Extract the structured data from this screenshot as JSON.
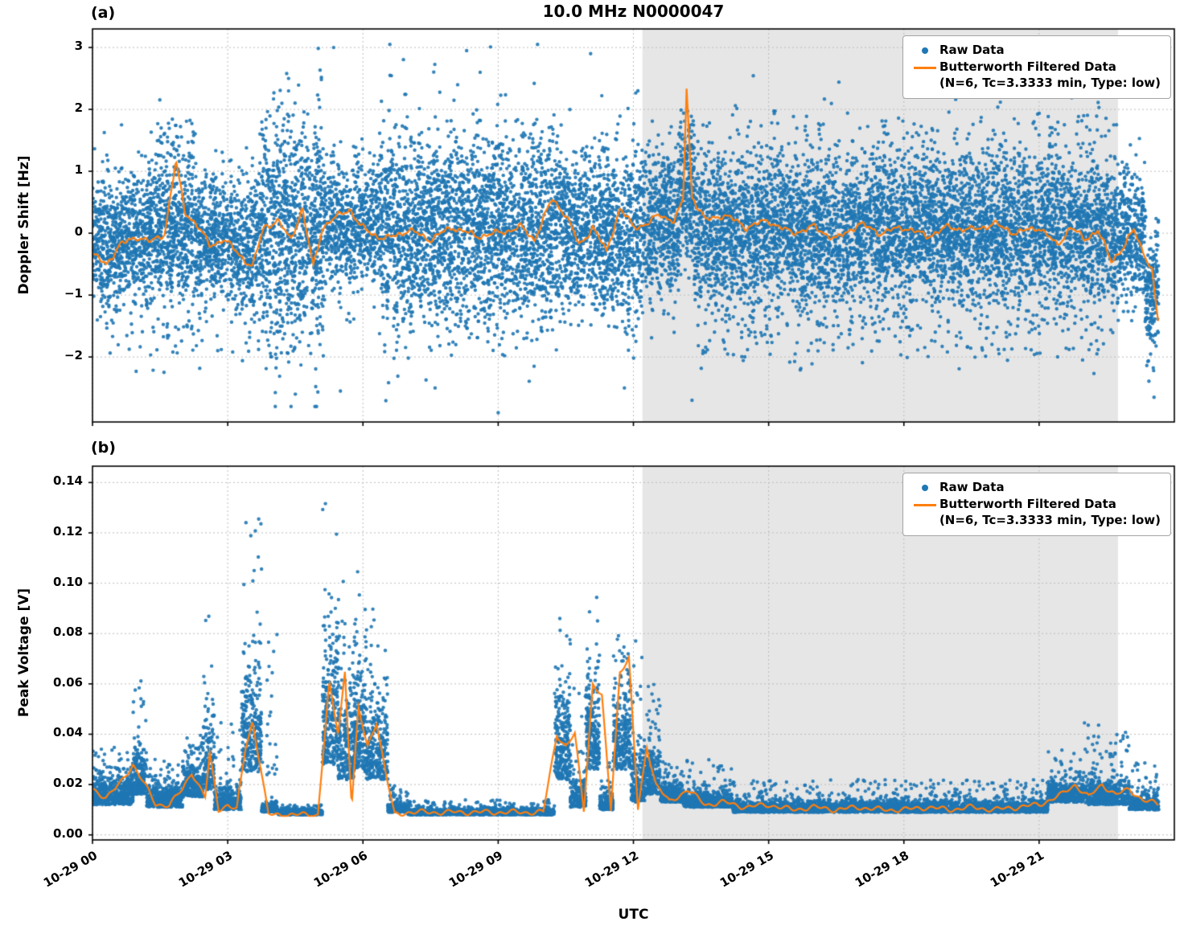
{
  "figure": {
    "title": "10.0 MHz N0000047",
    "panel_a_label": "(a)",
    "panel_b_label": "(b)",
    "xlabel": "UTC",
    "colors": {
      "raw": "#1f77b4",
      "filtered": "#ff7f0e",
      "shade": "#e6e6e6",
      "grid": "#bdbdbd",
      "spine": "#000000"
    },
    "legend": {
      "raw_label": "Raw Data",
      "filtered_label": "Butterworth Filtered Data",
      "filtered_sublabel": "(N=6, Tc=3.3333 min, Type: low)"
    }
  },
  "chart_data": [
    {
      "type": "scatter",
      "panel": "a",
      "title": "10.0 MHz N0000047",
      "ylabel": "Doppler Shift [Hz]",
      "ylim": [
        -3.05,
        3.3
      ],
      "yticks": [
        -2,
        -1,
        0,
        1,
        2,
        3
      ],
      "ytick_labels": [
        "−2",
        "−1",
        "0",
        "1",
        "2",
        "3"
      ],
      "xlim_hours": [
        0,
        24
      ],
      "xticks": [
        {
          "h": 0,
          "label": "10-29 00"
        },
        {
          "h": 3,
          "label": "10-29 03"
        },
        {
          "h": 6,
          "label": "10-29 06"
        },
        {
          "h": 9,
          "label": "10-29 09"
        },
        {
          "h": 12,
          "label": "10-29 12"
        },
        {
          "h": 15,
          "label": "10-29 15"
        },
        {
          "h": 18,
          "label": "10-29 18"
        },
        {
          "h": 21,
          "label": "10-29 21"
        }
      ],
      "shade_hours": [
        12.2,
        22.75
      ],
      "grid": true,
      "legend_position": "upper right",
      "segments_format": "[t0_hours, t1_hours, mean_Hz, sigma_Hz, n_points]",
      "raw_segments": [
        [
          0.0,
          0.45,
          -0.15,
          0.55,
          260
        ],
        [
          0.45,
          1.15,
          -0.1,
          0.5,
          420
        ],
        [
          1.15,
          2.35,
          0.0,
          0.55,
          750
        ],
        [
          2.35,
          3.1,
          -0.1,
          0.5,
          430
        ],
        [
          3.1,
          3.75,
          -0.2,
          0.55,
          370
        ],
        [
          3.75,
          5.15,
          0.05,
          0.95,
          950
        ],
        [
          5.15,
          6.35,
          0.1,
          0.5,
          680
        ],
        [
          6.35,
          7.3,
          0.05,
          0.85,
          620
        ],
        [
          7.3,
          8.05,
          0.0,
          0.8,
          500
        ],
        [
          8.05,
          9.2,
          0.05,
          0.8,
          760
        ],
        [
          9.2,
          10.35,
          0.0,
          0.75,
          720
        ],
        [
          10.35,
          11.0,
          0.1,
          0.6,
          420
        ],
        [
          11.0,
          12.2,
          0.0,
          0.7,
          760
        ],
        [
          12.2,
          13.0,
          0.1,
          0.6,
          520
        ],
        [
          13.0,
          13.35,
          0.7,
          0.6,
          240
        ],
        [
          13.35,
          22.4,
          0.05,
          0.62,
          5800
        ],
        [
          22.4,
          23.35,
          -0.05,
          0.55,
          580
        ],
        [
          23.35,
          23.65,
          -0.9,
          0.5,
          190
        ],
        [
          0.3,
          3.5,
          -1.6,
          0.3,
          60
        ],
        [
          1.4,
          2.3,
          1.5,
          0.3,
          55
        ],
        [
          13.4,
          22.4,
          -1.7,
          0.25,
          150
        ],
        [
          13.4,
          22.8,
          1.75,
          0.2,
          70
        ]
      ],
      "outliers": [
        [
          5.35,
          3.0
        ],
        [
          8.3,
          2.95
        ],
        [
          11.05,
          2.9
        ],
        [
          8.6,
          2.6
        ],
        [
          4.35,
          2.5
        ],
        [
          6.6,
          2.55
        ],
        [
          12.1,
          2.3
        ],
        [
          9.0,
          -2.9
        ],
        [
          11.8,
          -2.5
        ],
        [
          5.5,
          -2.55
        ],
        [
          23.55,
          -2.65
        ],
        [
          13.3,
          -2.7
        ],
        [
          4.5,
          -2.6
        ],
        [
          7.6,
          -2.5
        ]
      ],
      "filtered_keypoints": [
        [
          0,
          -0.35
        ],
        [
          0.3,
          -0.5
        ],
        [
          0.6,
          -0.2
        ],
        [
          1.0,
          -0.05
        ],
        [
          1.3,
          -0.15
        ],
        [
          1.6,
          0.0
        ],
        [
          1.85,
          1.15
        ],
        [
          2.05,
          0.35
        ],
        [
          2.3,
          0.15
        ],
        [
          2.6,
          -0.2
        ],
        [
          2.9,
          -0.1
        ],
        [
          3.2,
          -0.3
        ],
        [
          3.55,
          -0.55
        ],
        [
          3.8,
          0.1
        ],
        [
          4.1,
          0.2
        ],
        [
          4.4,
          -0.1
        ],
        [
          4.65,
          0.4
        ],
        [
          4.9,
          -0.55
        ],
        [
          5.1,
          0.1
        ],
        [
          5.4,
          0.25
        ],
        [
          5.7,
          0.4
        ],
        [
          5.95,
          0.1
        ],
        [
          6.2,
          0.0
        ],
        [
          6.5,
          -0.1
        ],
        [
          7.0,
          0.05
        ],
        [
          7.5,
          -0.1
        ],
        [
          8.0,
          0.1
        ],
        [
          8.5,
          -0.05
        ],
        [
          9.0,
          0.0
        ],
        [
          9.5,
          0.1
        ],
        [
          9.8,
          -0.1
        ],
        [
          10.2,
          0.55
        ],
        [
          10.5,
          0.3
        ],
        [
          10.8,
          -0.2
        ],
        [
          11.1,
          0.1
        ],
        [
          11.4,
          -0.3
        ],
        [
          11.7,
          0.4
        ],
        [
          12.0,
          0.1
        ],
        [
          12.3,
          0.15
        ],
        [
          12.6,
          0.3
        ],
        [
          12.9,
          0.2
        ],
        [
          13.1,
          0.5
        ],
        [
          13.18,
          2.35
        ],
        [
          13.3,
          0.6
        ],
        [
          13.6,
          0.2
        ],
        [
          14.0,
          0.3
        ],
        [
          14.5,
          0.1
        ],
        [
          15.0,
          0.2
        ],
        [
          15.5,
          0.0
        ],
        [
          16.0,
          0.1
        ],
        [
          16.5,
          -0.1
        ],
        [
          17.0,
          0.15
        ],
        [
          17.5,
          0.0
        ],
        [
          18.0,
          0.1
        ],
        [
          18.5,
          -0.05
        ],
        [
          19.0,
          0.1
        ],
        [
          19.5,
          0.05
        ],
        [
          20.0,
          0.15
        ],
        [
          20.5,
          0.0
        ],
        [
          21.0,
          0.1
        ],
        [
          21.4,
          -0.2
        ],
        [
          21.7,
          0.1
        ],
        [
          22.0,
          -0.1
        ],
        [
          22.3,
          0.05
        ],
        [
          22.6,
          -0.45
        ],
        [
          22.9,
          -0.2
        ],
        [
          23.1,
          0.05
        ],
        [
          23.35,
          -0.35
        ],
        [
          23.5,
          -0.6
        ],
        [
          23.65,
          -1.5
        ]
      ],
      "filtered_wiggle_Hz": 0.07,
      "series_names": [
        "Raw Data",
        "Butterworth Filtered Data (N=6, Tc=3.3333 min, Type: low)"
      ]
    },
    {
      "type": "scatter",
      "panel": "b",
      "ylabel": "Peak Voltage [V]",
      "xlabel": "UTC",
      "ylim": [
        -0.002,
        0.1465
      ],
      "yticks": [
        0.0,
        0.02,
        0.04,
        0.06,
        0.08,
        0.1,
        0.12,
        0.14
      ],
      "ytick_labels": [
        "0.00",
        "0.02",
        "0.04",
        "0.06",
        "0.08",
        "0.10",
        "0.12",
        "0.14"
      ],
      "xlim_hours": [
        0,
        24
      ],
      "xticks": [
        {
          "h": 0,
          "label": "10-29 00"
        },
        {
          "h": 3,
          "label": "10-29 03"
        },
        {
          "h": 6,
          "label": "10-29 06"
        },
        {
          "h": 9,
          "label": "10-29 09"
        },
        {
          "h": 12,
          "label": "10-29 12"
        },
        {
          "h": 15,
          "label": "10-29 15"
        },
        {
          "h": 18,
          "label": "10-29 18"
        },
        {
          "h": 21,
          "label": "10-29 21"
        }
      ],
      "shade_hours": [
        12.2,
        22.75
      ],
      "grid": true,
      "legend_position": "upper right",
      "segments_format": "[t0_hours, t1_hours, base_V, spread_V, burst_peak_V, n_points]",
      "raw_segments": [
        [
          0.0,
          0.9,
          0.012,
          0.012,
          0.035,
          520
        ],
        [
          0.9,
          1.2,
          0.016,
          0.018,
          0.062,
          220
        ],
        [
          1.2,
          2.0,
          0.011,
          0.009,
          0.03,
          460
        ],
        [
          2.0,
          2.45,
          0.015,
          0.013,
          0.04,
          260
        ],
        [
          2.45,
          2.7,
          0.018,
          0.025,
          0.088,
          160
        ],
        [
          2.7,
          3.3,
          0.01,
          0.008,
          0.045,
          310
        ],
        [
          3.3,
          3.75,
          0.025,
          0.04,
          0.13,
          300
        ],
        [
          3.75,
          4.1,
          0.009,
          0.004,
          0.082,
          200
        ],
        [
          4.1,
          5.1,
          0.008,
          0.002,
          0.012,
          560
        ],
        [
          5.1,
          5.45,
          0.028,
          0.05,
          0.143,
          260
        ],
        [
          5.45,
          5.8,
          0.022,
          0.035,
          0.107,
          230
        ],
        [
          5.8,
          6.05,
          0.026,
          0.04,
          0.108,
          190
        ],
        [
          6.05,
          6.55,
          0.022,
          0.03,
          0.09,
          310
        ],
        [
          6.55,
          7.0,
          0.009,
          0.003,
          0.02,
          260
        ],
        [
          7.0,
          10.25,
          0.008,
          0.002,
          0.014,
          1750
        ],
        [
          10.25,
          10.6,
          0.022,
          0.035,
          0.088,
          260
        ],
        [
          10.6,
          10.95,
          0.011,
          0.01,
          0.06,
          210
        ],
        [
          10.95,
          11.25,
          0.026,
          0.04,
          0.105,
          230
        ],
        [
          11.25,
          11.55,
          0.01,
          0.006,
          0.03,
          190
        ],
        [
          11.55,
          11.95,
          0.026,
          0.035,
          0.08,
          260
        ],
        [
          11.95,
          12.25,
          0.013,
          0.022,
          0.079,
          190
        ],
        [
          12.25,
          12.6,
          0.016,
          0.02,
          0.07,
          210
        ],
        [
          12.6,
          13.1,
          0.013,
          0.008,
          0.03,
          290
        ],
        [
          13.1,
          14.2,
          0.011,
          0.006,
          0.03,
          560
        ],
        [
          14.2,
          21.2,
          0.009,
          0.004,
          0.022,
          3500
        ],
        [
          21.2,
          22.0,
          0.013,
          0.008,
          0.035,
          470
        ],
        [
          22.0,
          23.0,
          0.012,
          0.009,
          0.045,
          540
        ],
        [
          23.0,
          23.65,
          0.01,
          0.006,
          0.03,
          330
        ]
      ],
      "filtered_keypoints": [
        [
          0,
          0.018
        ],
        [
          0.3,
          0.015
        ],
        [
          0.6,
          0.02
        ],
        [
          0.9,
          0.028
        ],
        [
          1.1,
          0.022
        ],
        [
          1.4,
          0.012
        ],
        [
          1.7,
          0.012
        ],
        [
          2.0,
          0.018
        ],
        [
          2.2,
          0.025
        ],
        [
          2.5,
          0.015
        ],
        [
          2.6,
          0.032
        ],
        [
          2.8,
          0.01
        ],
        [
          3.0,
          0.012
        ],
        [
          3.2,
          0.01
        ],
        [
          3.4,
          0.035
        ],
        [
          3.55,
          0.045
        ],
        [
          3.7,
          0.03
        ],
        [
          3.9,
          0.008
        ],
        [
          4.2,
          0.008
        ],
        [
          4.6,
          0.008
        ],
        [
          5.0,
          0.008
        ],
        [
          5.25,
          0.06
        ],
        [
          5.45,
          0.04
        ],
        [
          5.6,
          0.065
        ],
        [
          5.75,
          0.012
        ],
        [
          5.9,
          0.05
        ],
        [
          6.1,
          0.035
        ],
        [
          6.3,
          0.045
        ],
        [
          6.5,
          0.025
        ],
        [
          6.7,
          0.008
        ],
        [
          7.0,
          0.009
        ],
        [
          7.5,
          0.009
        ],
        [
          8.0,
          0.009
        ],
        [
          8.5,
          0.009
        ],
        [
          9.0,
          0.009
        ],
        [
          9.5,
          0.009
        ],
        [
          10.0,
          0.009
        ],
        [
          10.3,
          0.04
        ],
        [
          10.5,
          0.035
        ],
        [
          10.7,
          0.04
        ],
        [
          10.9,
          0.01
        ],
        [
          11.1,
          0.06
        ],
        [
          11.3,
          0.055
        ],
        [
          11.5,
          0.01
        ],
        [
          11.7,
          0.065
        ],
        [
          11.9,
          0.07
        ],
        [
          12.1,
          0.01
        ],
        [
          12.3,
          0.035
        ],
        [
          12.5,
          0.02
        ],
        [
          12.8,
          0.013
        ],
        [
          13.2,
          0.018
        ],
        [
          13.6,
          0.012
        ],
        [
          14.0,
          0.013
        ],
        [
          14.5,
          0.011
        ],
        [
          15.0,
          0.012
        ],
        [
          15.5,
          0.01
        ],
        [
          16.0,
          0.011
        ],
        [
          16.5,
          0.01
        ],
        [
          17.0,
          0.011
        ],
        [
          17.5,
          0.01
        ],
        [
          18.0,
          0.01
        ],
        [
          18.5,
          0.011
        ],
        [
          19.0,
          0.01
        ],
        [
          19.5,
          0.011
        ],
        [
          20.0,
          0.01
        ],
        [
          20.5,
          0.011
        ],
        [
          21.0,
          0.012
        ],
        [
          21.5,
          0.016
        ],
        [
          21.8,
          0.02
        ],
        [
          22.1,
          0.015
        ],
        [
          22.4,
          0.02
        ],
        [
          22.7,
          0.016
        ],
        [
          23.0,
          0.018
        ],
        [
          23.3,
          0.014
        ],
        [
          23.65,
          0.012
        ]
      ],
      "filtered_wiggle_V": 0.0012,
      "series_names": [
        "Raw Data",
        "Butterworth Filtered Data (N=6, Tc=3.3333 min, Type: low)"
      ]
    }
  ]
}
